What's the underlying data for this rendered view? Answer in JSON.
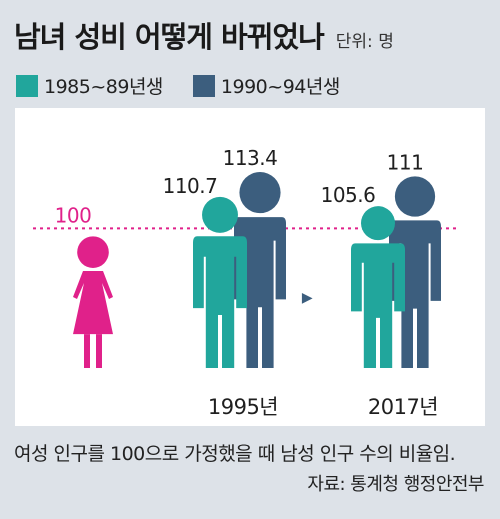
{
  "title": "남녀 성비 어떻게 바뀌었나",
  "unit_label": "단위: 명",
  "colors": {
    "female": "#e0218a",
    "series1": "#21a69c",
    "series2": "#3c5e7e",
    "background": "#dde2e8"
  },
  "chart_data": {
    "type": "bar",
    "categories": [
      "1995년",
      "2017년"
    ],
    "series": [
      {
        "name": "1985~89년생",
        "values": [
          110.7,
          105.6
        ]
      },
      {
        "name": "1990~94년생",
        "values": [
          113.4,
          111
        ]
      }
    ],
    "baseline": {
      "label": "100",
      "value": 100,
      "icon": "female-figure-icon"
    },
    "value_labels": [
      [
        "110.7",
        "105.6"
      ],
      [
        "113.4",
        "111"
      ]
    ],
    "ylim": [
      0,
      113.4
    ]
  },
  "arrow": "▶",
  "footnote": "여성 인구를 100으로 가정했을 때 남성 인구 수의 비율임.",
  "source": "자료: 통계청 행정안전부"
}
